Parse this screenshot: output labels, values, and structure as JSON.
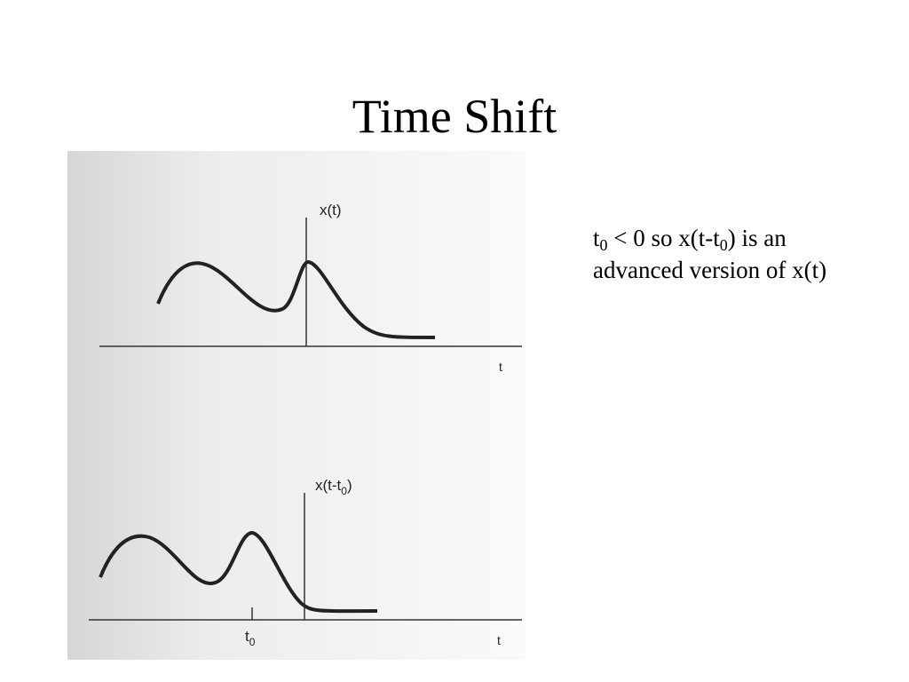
{
  "title": "Time Shift",
  "figure": {
    "top": {
      "axis_label": "x(t)",
      "time_label": "t"
    },
    "bottom": {
      "axis_label_parts": [
        "x(t-t",
        "0",
        ")"
      ],
      "time_label": "t",
      "shift_label_parts": [
        "t",
        "0"
      ]
    }
  },
  "note": {
    "parts": [
      "t",
      "0",
      " < 0 so x(t-t",
      "0",
      ") is an advanced version of x(t)"
    ]
  }
}
